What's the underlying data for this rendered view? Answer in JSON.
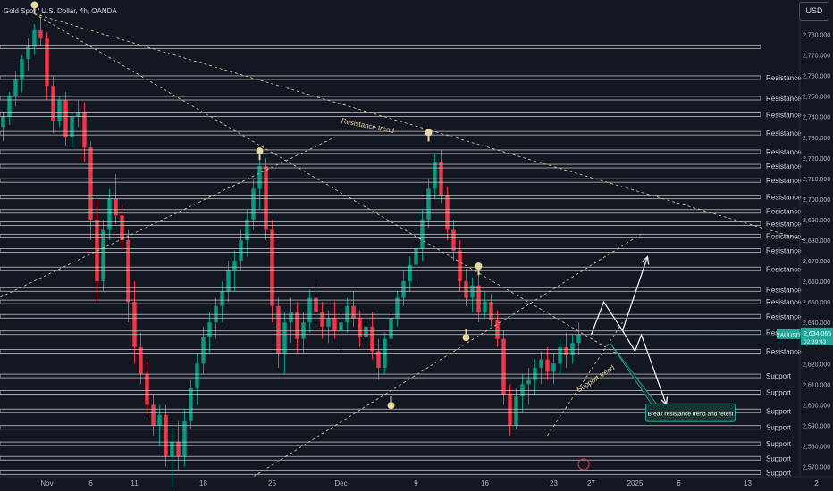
{
  "header": {
    "symbol_title": "Gold Spot / U.S. Dollar, 4h, OANDA",
    "currency_button": "USD"
  },
  "chart_data": {
    "type": "candlestick",
    "symbol": "XAUUSD",
    "title": "Gold Spot / U.S. Dollar, 4h, OANDA",
    "colors": {
      "up": "#089981",
      "down": "#f23645",
      "background": "#131722",
      "zone": "#c8c8c8",
      "trend": "#e8d9a0",
      "accent": "#26a69a"
    },
    "ylim": [
      2565,
      2795
    ],
    "y_ticks": [
      2570,
      2580,
      2590,
      2600,
      2610,
      2620,
      2630,
      2640,
      2650,
      2660,
      2670,
      2680,
      2690,
      2700,
      2710,
      2720,
      2730,
      2740,
      2750,
      2760,
      2770,
      2780
    ],
    "y_tick_labels": [
      "2,570.000",
      "2,580.000",
      "2,590.000",
      "2,600.000",
      "2,610.000",
      "2,620.000",
      "2,630.000",
      "2,640.000",
      "2,650.000",
      "2,660.000",
      "2,670.000",
      "2,680.000",
      "2,690.000",
      "2,700.000",
      "2,710.000",
      "2,720.000",
      "2,730.000",
      "2,740.000",
      "2,750.000",
      "2,760.000",
      "2,770.000",
      "2,780.000"
    ],
    "x_ticks": [
      {
        "label": "Nov",
        "bar": 7
      },
      {
        "label": "6",
        "bar": 14
      },
      {
        "label": "11",
        "bar": 21
      },
      {
        "label": "18",
        "bar": 32
      },
      {
        "label": "25",
        "bar": 43
      },
      {
        "label": "Dec",
        "bar": 54
      },
      {
        "label": "9",
        "bar": 66
      },
      {
        "label": "16",
        "bar": 77
      },
      {
        "label": "23",
        "bar": 88
      },
      {
        "label": "27",
        "bar": 94
      },
      {
        "label": "2025",
        "bar": 101
      },
      {
        "label": "6",
        "bar": 108
      },
      {
        "label": "13",
        "bar": 119
      },
      {
        "label": "2",
        "bar": 130
      }
    ],
    "candles": [
      [
        2735,
        2742,
        2728,
        2740
      ],
      [
        2740,
        2752,
        2736,
        2750
      ],
      [
        2750,
        2762,
        2745,
        2758
      ],
      [
        2758,
        2770,
        2752,
        2768
      ],
      [
        2768,
        2778,
        2762,
        2774
      ],
      [
        2774,
        2785,
        2770,
        2782
      ],
      [
        2782,
        2790,
        2775,
        2778
      ],
      [
        2778,
        2781,
        2748,
        2755
      ],
      [
        2755,
        2760,
        2732,
        2738
      ],
      [
        2738,
        2750,
        2735,
        2748
      ],
      [
        2748,
        2752,
        2726,
        2730
      ],
      [
        2730,
        2742,
        2725,
        2740
      ],
      [
        2740,
        2748,
        2735,
        2742
      ],
      [
        2742,
        2747,
        2718,
        2725
      ],
      [
        2725,
        2728,
        2680,
        2690
      ],
      [
        2690,
        2700,
        2650,
        2660
      ],
      [
        2660,
        2690,
        2655,
        2685
      ],
      [
        2685,
        2705,
        2680,
        2700
      ],
      [
        2700,
        2712,
        2688,
        2692
      ],
      [
        2692,
        2697,
        2675,
        2680
      ],
      [
        2680,
        2685,
        2640,
        2650
      ],
      [
        2650,
        2660,
        2620,
        2628
      ],
      [
        2628,
        2635,
        2610,
        2615
      ],
      [
        2615,
        2622,
        2595,
        2600
      ],
      [
        2600,
        2605,
        2585,
        2590
      ],
      [
        2590,
        2600,
        2580,
        2595
      ],
      [
        2595,
        2600,
        2570,
        2575
      ],
      [
        2575,
        2588,
        2560,
        2582
      ],
      [
        2582,
        2592,
        2568,
        2575
      ],
      [
        2575,
        2598,
        2570,
        2592
      ],
      [
        2592,
        2612,
        2588,
        2608
      ],
      [
        2608,
        2625,
        2600,
        2620
      ],
      [
        2620,
        2638,
        2615,
        2633
      ],
      [
        2633,
        2645,
        2625,
        2640
      ],
      [
        2640,
        2652,
        2632,
        2648
      ],
      [
        2648,
        2660,
        2640,
        2655
      ],
      [
        2655,
        2670,
        2650,
        2665
      ],
      [
        2665,
        2675,
        2655,
        2670
      ],
      [
        2670,
        2685,
        2665,
        2680
      ],
      [
        2680,
        2695,
        2672,
        2690
      ],
      [
        2690,
        2710,
        2685,
        2705
      ],
      [
        2705,
        2722,
        2695,
        2716
      ],
      [
        2716,
        2720,
        2680,
        2685
      ],
      [
        2685,
        2690,
        2640,
        2648
      ],
      [
        2648,
        2652,
        2618,
        2625
      ],
      [
        2625,
        2645,
        2615,
        2640
      ],
      [
        2640,
        2652,
        2630,
        2645
      ],
      [
        2645,
        2650,
        2625,
        2632
      ],
      [
        2632,
        2645,
        2625,
        2640
      ],
      [
        2640,
        2656,
        2635,
        2652
      ],
      [
        2652,
        2660,
        2640,
        2645
      ],
      [
        2645,
        2650,
        2632,
        2638
      ],
      [
        2638,
        2646,
        2630,
        2642
      ],
      [
        2642,
        2650,
        2632,
        2636
      ],
      [
        2636,
        2645,
        2625,
        2640
      ],
      [
        2640,
        2652,
        2635,
        2648
      ],
      [
        2648,
        2655,
        2638,
        2642
      ],
      [
        2642,
        2646,
        2628,
        2633
      ],
      [
        2633,
        2642,
        2625,
        2638
      ],
      [
        2638,
        2645,
        2622,
        2626
      ],
      [
        2626,
        2632,
        2612,
        2618
      ],
      [
        2618,
        2635,
        2615,
        2632
      ],
      [
        2632,
        2645,
        2628,
        2642
      ],
      [
        2642,
        2655,
        2638,
        2652
      ],
      [
        2652,
        2665,
        2648,
        2660
      ],
      [
        2660,
        2672,
        2655,
        2668
      ],
      [
        2668,
        2680,
        2660,
        2676
      ],
      [
        2676,
        2695,
        2670,
        2690
      ],
      [
        2690,
        2710,
        2686,
        2705
      ],
      [
        2705,
        2722,
        2700,
        2718
      ],
      [
        2718,
        2724,
        2698,
        2702
      ],
      [
        2702,
        2706,
        2680,
        2685
      ],
      [
        2685,
        2690,
        2670,
        2675
      ],
      [
        2675,
        2680,
        2655,
        2660
      ],
      [
        2660,
        2666,
        2648,
        2652
      ],
      [
        2652,
        2662,
        2645,
        2658
      ],
      [
        2658,
        2664,
        2640,
        2645
      ],
      [
        2645,
        2655,
        2642,
        2650
      ],
      [
        2650,
        2654,
        2638,
        2641
      ],
      [
        2641,
        2646,
        2628,
        2632
      ],
      [
        2632,
        2636,
        2600,
        2605
      ],
      [
        2605,
        2610,
        2585,
        2590
      ],
      [
        2590,
        2608,
        2588,
        2604
      ],
      [
        2604,
        2615,
        2596,
        2610
      ],
      [
        2610,
        2618,
        2600,
        2612
      ],
      [
        2612,
        2622,
        2605,
        2618
      ],
      [
        2618,
        2626,
        2610,
        2622
      ],
      [
        2622,
        2628,
        2612,
        2616
      ],
      [
        2616,
        2625,
        2610,
        2620
      ],
      [
        2620,
        2632,
        2615,
        2628
      ],
      [
        2628,
        2635,
        2618,
        2624
      ],
      [
        2624,
        2634,
        2620,
        2630
      ],
      [
        2630,
        2640,
        2624,
        2634
      ]
    ],
    "price_label": {
      "symbol": "XAUUSD",
      "price": "2,634.065",
      "countdown": "02:39:43",
      "value": 2634.065
    },
    "zones": [
      {
        "label": "",
        "price": 2774
      },
      {
        "label": "Resistance",
        "price": 2759
      },
      {
        "label": "Resistance",
        "price": 2749
      },
      {
        "label": "Resistance",
        "price": 2741
      },
      {
        "label": "Resistance",
        "price": 2732
      },
      {
        "label": "Resistance",
        "price": 2723
      },
      {
        "label": "Resistance",
        "price": 2716
      },
      {
        "label": "Resistance",
        "price": 2709
      },
      {
        "label": "Resistance",
        "price": 2701
      },
      {
        "label": "Resistance",
        "price": 2694
      },
      {
        "label": "Resistance",
        "price": 2688
      },
      {
        "label": "Resistance",
        "price": 2682
      },
      {
        "label": "Resistance",
        "price": 2675
      },
      {
        "label": "Resistance",
        "price": 2666
      },
      {
        "label": "Resistance",
        "price": 2656
      },
      {
        "label": "Resistance",
        "price": 2650
      },
      {
        "label": "Resistance",
        "price": 2643
      },
      {
        "label": "Resistance",
        "price": 2635
      },
      {
        "label": "Resistance",
        "price": 2626
      },
      {
        "label": "Support",
        "price": 2614
      },
      {
        "label": "Support",
        "price": 2606
      },
      {
        "label": "Support",
        "price": 2597
      },
      {
        "label": "Support",
        "price": 2589
      },
      {
        "label": "Support",
        "price": 2581
      },
      {
        "label": "Support",
        "price": 2574
      },
      {
        "label": "Support",
        "price": 2567
      }
    ],
    "trendlines": [
      {
        "from": [
          5,
          2790
        ],
        "to": [
          128,
          2680
        ]
      },
      {
        "from": [
          5,
          2790
        ],
        "to": [
          98,
          2625
        ]
      },
      {
        "from": [
          -2,
          2650
        ],
        "to": [
          53,
          2730
        ]
      },
      {
        "from": [
          40,
          2565
        ],
        "to": [
          102,
          2683
        ]
      },
      {
        "from": [
          87,
          2585
        ],
        "to": [
          99,
          2640
        ]
      }
    ],
    "annotations": [
      {
        "text": "Resistance trend",
        "bar": 54,
        "price": 2737,
        "angle": 11
      },
      {
        "text": "Support trend",
        "bar": 92,
        "price": 2606,
        "angle": -33
      },
      {
        "text": "Break resistance trend and retest",
        "bar": 103,
        "price": 2597,
        "boxed": true
      }
    ],
    "markers": [
      {
        "bar": 5,
        "price": 2790,
        "dir": "up"
      },
      {
        "bar": 41,
        "price": 2719,
        "dir": "up"
      },
      {
        "bar": 68,
        "price": 2728,
        "dir": "up"
      },
      {
        "bar": 76,
        "price": 2663,
        "dir": "up"
      },
      {
        "bar": 62,
        "price": 2604,
        "dir": "down"
      },
      {
        "bar": 74,
        "price": 2637,
        "dir": "down"
      }
    ],
    "projections": [
      {
        "points": [
          [
            94,
            2634
          ],
          [
            96,
            2650
          ],
          [
            99,
            2636
          ],
          [
            103,
            2672
          ]
        ],
        "arrow": true
      },
      {
        "points": [
          [
            99,
            2636
          ],
          [
            101,
            2626
          ],
          [
            102,
            2634
          ],
          [
            106,
            2600
          ]
        ],
        "arrow": true
      }
    ]
  }
}
